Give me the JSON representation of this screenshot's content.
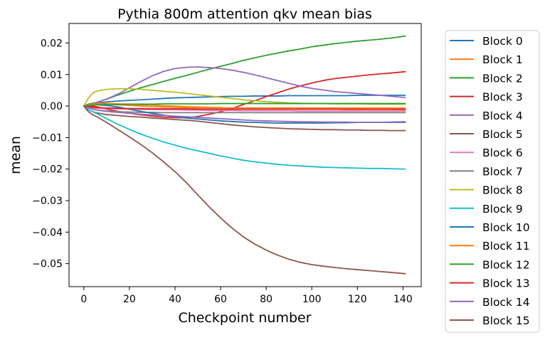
{
  "chart_data": {
    "type": "line",
    "title": "Pythia 800m attention qkv mean bias",
    "xlabel": "Checkpoint number",
    "ylabel": "mean",
    "xlim": [
      -6.5,
      148
    ],
    "ylim": [
      -0.0573,
      0.0262
    ],
    "xticks": [
      0,
      20,
      40,
      60,
      80,
      100,
      120,
      140
    ],
    "xtick_labels": [
      "0",
      "20",
      "40",
      "60",
      "80",
      "100",
      "120",
      "140"
    ],
    "yticks": [
      0.02,
      0.01,
      0.0,
      -0.01,
      -0.02,
      -0.03,
      -0.04,
      -0.05
    ],
    "ytick_labels": [
      "0.02",
      "0.01",
      "0.00",
      "−0.01",
      "−0.02",
      "−0.03",
      "−0.04",
      "−0.05"
    ],
    "grid": false,
    "legend_position": "outside-right",
    "x": [
      0,
      2,
      4,
      6,
      10,
      15,
      20,
      25,
      30,
      35,
      40,
      45,
      50,
      55,
      60,
      65,
      70,
      75,
      80,
      85,
      90,
      95,
      100,
      105,
      110,
      115,
      120,
      125,
      130,
      135,
      141
    ],
    "series": [
      {
        "name": "Block 0",
        "color": "#1f77b4",
        "values": [
          0.0,
          0.0005,
          0.0008,
          0.001,
          0.0013,
          0.0016,
          0.0018,
          0.002,
          0.0022,
          0.0024,
          0.0026,
          0.0027,
          0.0028,
          0.0029,
          0.003,
          0.0031,
          0.0031,
          0.0032,
          0.0032,
          0.0032,
          0.0033,
          0.0033,
          0.0033,
          0.0033,
          0.0033,
          0.0033,
          0.0034,
          0.0034,
          0.0034,
          0.0034,
          0.0034
        ]
      },
      {
        "name": "Block 1",
        "color": "#ff7f0e",
        "values": [
          0.0,
          0.0006,
          0.0008,
          0.0009,
          0.0008,
          0.0007,
          0.0006,
          0.0004,
          0.0003,
          0.0001,
          0.0,
          -0.0002,
          -0.0003,
          -0.0004,
          -0.0005,
          -0.0006,
          -0.0007,
          -0.0008,
          -0.0008,
          -0.0009,
          -0.0009,
          -0.001,
          -0.001,
          -0.001,
          -0.001,
          -0.0011,
          -0.0011,
          -0.0011,
          -0.0011,
          -0.0011,
          -0.0012
        ]
      },
      {
        "name": "Block 2",
        "color": "#2ca02c",
        "values": [
          0.0,
          0.0006,
          0.0009,
          0.0012,
          0.0022,
          0.0035,
          0.0047,
          0.0058,
          0.0068,
          0.0078,
          0.0088,
          0.0097,
          0.0107,
          0.0117,
          0.0126,
          0.0135,
          0.0145,
          0.0153,
          0.0161,
          0.0168,
          0.0175,
          0.0181,
          0.0188,
          0.0193,
          0.0198,
          0.0202,
          0.0206,
          0.0209,
          0.0212,
          0.0216,
          0.0222
        ]
      },
      {
        "name": "Block 3",
        "color": "#d62728",
        "values": [
          0.0,
          0.0002,
          0.0,
          -0.0003,
          -0.001,
          -0.0017,
          -0.0023,
          -0.0028,
          -0.0032,
          -0.0035,
          -0.0037,
          -0.0037,
          -0.0033,
          -0.0026,
          -0.0018,
          -0.0008,
          0.0005,
          0.0017,
          0.003,
          0.0042,
          0.0054,
          0.0064,
          0.0073,
          0.0081,
          0.0087,
          0.0091,
          0.0095,
          0.0099,
          0.0102,
          0.0105,
          0.0109
        ]
      },
      {
        "name": "Block 4",
        "color": "#9467bd",
        "values": [
          0.0,
          0.0002,
          0.0007,
          0.0012,
          0.0022,
          0.0038,
          0.0058,
          0.0078,
          0.0096,
          0.011,
          0.0119,
          0.0123,
          0.0124,
          0.0122,
          0.0119,
          0.0114,
          0.0107,
          0.0099,
          0.009,
          0.0081,
          0.0072,
          0.0063,
          0.0056,
          0.0051,
          0.0046,
          0.0043,
          0.004,
          0.0037,
          0.0034,
          0.0031,
          0.0027
        ]
      },
      {
        "name": "Block 5",
        "color": "#8c564b",
        "values": [
          0.0,
          -0.0012,
          -0.0018,
          -0.0022,
          -0.0027,
          -0.003,
          -0.0033,
          -0.0035,
          -0.0038,
          -0.004,
          -0.0043,
          -0.0045,
          -0.0048,
          -0.0052,
          -0.0056,
          -0.006,
          -0.0063,
          -0.0066,
          -0.0068,
          -0.007,
          -0.0072,
          -0.0073,
          -0.0074,
          -0.0075,
          -0.0075,
          -0.0076,
          -0.0076,
          -0.0077,
          -0.0077,
          -0.0078,
          -0.0078
        ]
      },
      {
        "name": "Block 6",
        "color": "#e377c2",
        "values": [
          0.0,
          -0.0003,
          -0.0005,
          -0.0007,
          -0.0008,
          -0.0009,
          -0.001,
          -0.0011,
          -0.0011,
          -0.0012,
          -0.0012,
          -0.0013,
          -0.0013,
          -0.0014,
          -0.0014,
          -0.0014,
          -0.0015,
          -0.0015,
          -0.0015,
          -0.0015,
          -0.0015,
          -0.0016,
          -0.0016,
          -0.0016,
          -0.0016,
          -0.0016,
          -0.0016,
          -0.0016,
          -0.0016,
          -0.0016,
          -0.0016
        ]
      },
      {
        "name": "Block 7",
        "color": "#7f7f7f",
        "values": [
          0.0,
          -0.0006,
          -0.001,
          -0.0013,
          -0.0016,
          -0.0018,
          -0.0019,
          -0.002,
          -0.002,
          -0.0021,
          -0.0021,
          -0.0021,
          -0.0021,
          -0.0021,
          -0.0021,
          -0.0021,
          -0.0021,
          -0.0021,
          -0.0021,
          -0.0021,
          -0.0021,
          -0.0021,
          -0.0021,
          -0.0021,
          -0.0021,
          -0.0021,
          -0.0021,
          -0.0021,
          -0.0021,
          -0.0021,
          -0.0021
        ]
      },
      {
        "name": "Block 8",
        "color": "#bcbd22",
        "values": [
          0.0,
          0.0025,
          0.0042,
          0.0048,
          0.0053,
          0.0055,
          0.0055,
          0.0053,
          0.005,
          0.0047,
          0.0044,
          0.004,
          0.0036,
          0.0032,
          0.0028,
          0.0024,
          0.002,
          0.0017,
          0.0014,
          0.0012,
          0.001,
          0.0009,
          0.0008,
          0.0008,
          0.0007,
          0.0007,
          0.0007,
          0.0006,
          0.0006,
          0.0006,
          0.0006
        ]
      },
      {
        "name": "Block 9",
        "color": "#17becf",
        "values": [
          0.0,
          -0.0012,
          -0.0018,
          -0.0025,
          -0.004,
          -0.0058,
          -0.0074,
          -0.0089,
          -0.0102,
          -0.0114,
          -0.0124,
          -0.0134,
          -0.0142,
          -0.015,
          -0.0158,
          -0.0165,
          -0.0172,
          -0.0177,
          -0.0181,
          -0.0185,
          -0.0188,
          -0.019,
          -0.0192,
          -0.0194,
          -0.0195,
          -0.0196,
          -0.0197,
          -0.0198,
          -0.0198,
          -0.0199,
          -0.02
        ]
      },
      {
        "name": "Block 10",
        "color": "#1f77b4",
        "values": [
          0.0,
          0.0003,
          0.0005,
          0.0004,
          0.0002,
          -0.0003,
          -0.001,
          -0.0017,
          -0.0023,
          -0.0029,
          -0.0034,
          -0.0038,
          -0.0041,
          -0.0044,
          -0.0047,
          -0.0049,
          -0.0051,
          -0.0052,
          -0.0053,
          -0.0054,
          -0.0054,
          -0.0054,
          -0.0054,
          -0.0054,
          -0.0053,
          -0.0053,
          -0.0052,
          -0.0052,
          -0.0052,
          -0.0051,
          -0.005
        ]
      },
      {
        "name": "Block 11",
        "color": "#ff7f0e",
        "values": [
          0.0,
          0.0004,
          0.0006,
          0.0007,
          0.0006,
          0.0004,
          0.0002,
          0.0,
          -0.0002,
          -0.0003,
          -0.0004,
          -0.0005,
          -0.0006,
          -0.0006,
          -0.0006,
          -0.0006,
          -0.0006,
          -0.0006,
          -0.0006,
          -0.0006,
          -0.0006,
          -0.0006,
          -0.0006,
          -0.0006,
          -0.0006,
          -0.0006,
          -0.0006,
          -0.0006,
          -0.0006,
          -0.0006,
          -0.0006
        ]
      },
      {
        "name": "Block 12",
        "color": "#2ca02c",
        "values": [
          0.0,
          0.0002,
          0.0003,
          0.0004,
          0.0005,
          0.0005,
          0.0006,
          0.0006,
          0.0006,
          0.0007,
          0.0007,
          0.0007,
          0.0007,
          0.0007,
          0.0008,
          0.0008,
          0.0008,
          0.0008,
          0.0008,
          0.0008,
          0.0008,
          0.0008,
          0.0008,
          0.0008,
          0.0008,
          0.0008,
          0.0008,
          0.0008,
          0.0008,
          0.0008,
          0.0008
        ]
      },
      {
        "name": "Block 13",
        "color": "#d62728",
        "values": [
          0.0,
          -0.0002,
          -0.0004,
          -0.0005,
          -0.0006,
          -0.0007,
          -0.0008,
          -0.0008,
          -0.0009,
          -0.0009,
          -0.0009,
          -0.0009,
          -0.001,
          -0.001,
          -0.001,
          -0.001,
          -0.001,
          -0.001,
          -0.001,
          -0.001,
          -0.001,
          -0.001,
          -0.001,
          -0.001,
          -0.001,
          -0.001,
          -0.001,
          -0.001,
          -0.001,
          -0.001,
          -0.001
        ]
      },
      {
        "name": "Block 14",
        "color": "#9467bd",
        "values": [
          0.0,
          -0.0005,
          -0.001,
          -0.0013,
          -0.0017,
          -0.002,
          -0.0023,
          -0.0026,
          -0.0028,
          -0.003,
          -0.0032,
          -0.0034,
          -0.0036,
          -0.0038,
          -0.004,
          -0.0042,
          -0.0044,
          -0.0046,
          -0.0047,
          -0.0048,
          -0.0049,
          -0.005,
          -0.005,
          -0.0051,
          -0.0051,
          -0.0051,
          -0.0052,
          -0.0052,
          -0.0052,
          -0.0052,
          -0.0052
        ]
      },
      {
        "name": "Block 15",
        "color": "#8c564b",
        "values": [
          0.0,
          -0.0018,
          -0.0028,
          -0.0035,
          -0.0052,
          -0.0075,
          -0.0098,
          -0.0122,
          -0.0148,
          -0.0177,
          -0.0208,
          -0.0243,
          -0.0282,
          -0.032,
          -0.0355,
          -0.0387,
          -0.0415,
          -0.0438,
          -0.0457,
          -0.0473,
          -0.0486,
          -0.0496,
          -0.0503,
          -0.0508,
          -0.0512,
          -0.0516,
          -0.0519,
          -0.0522,
          -0.0525,
          -0.0528,
          -0.0532
        ]
      }
    ]
  }
}
